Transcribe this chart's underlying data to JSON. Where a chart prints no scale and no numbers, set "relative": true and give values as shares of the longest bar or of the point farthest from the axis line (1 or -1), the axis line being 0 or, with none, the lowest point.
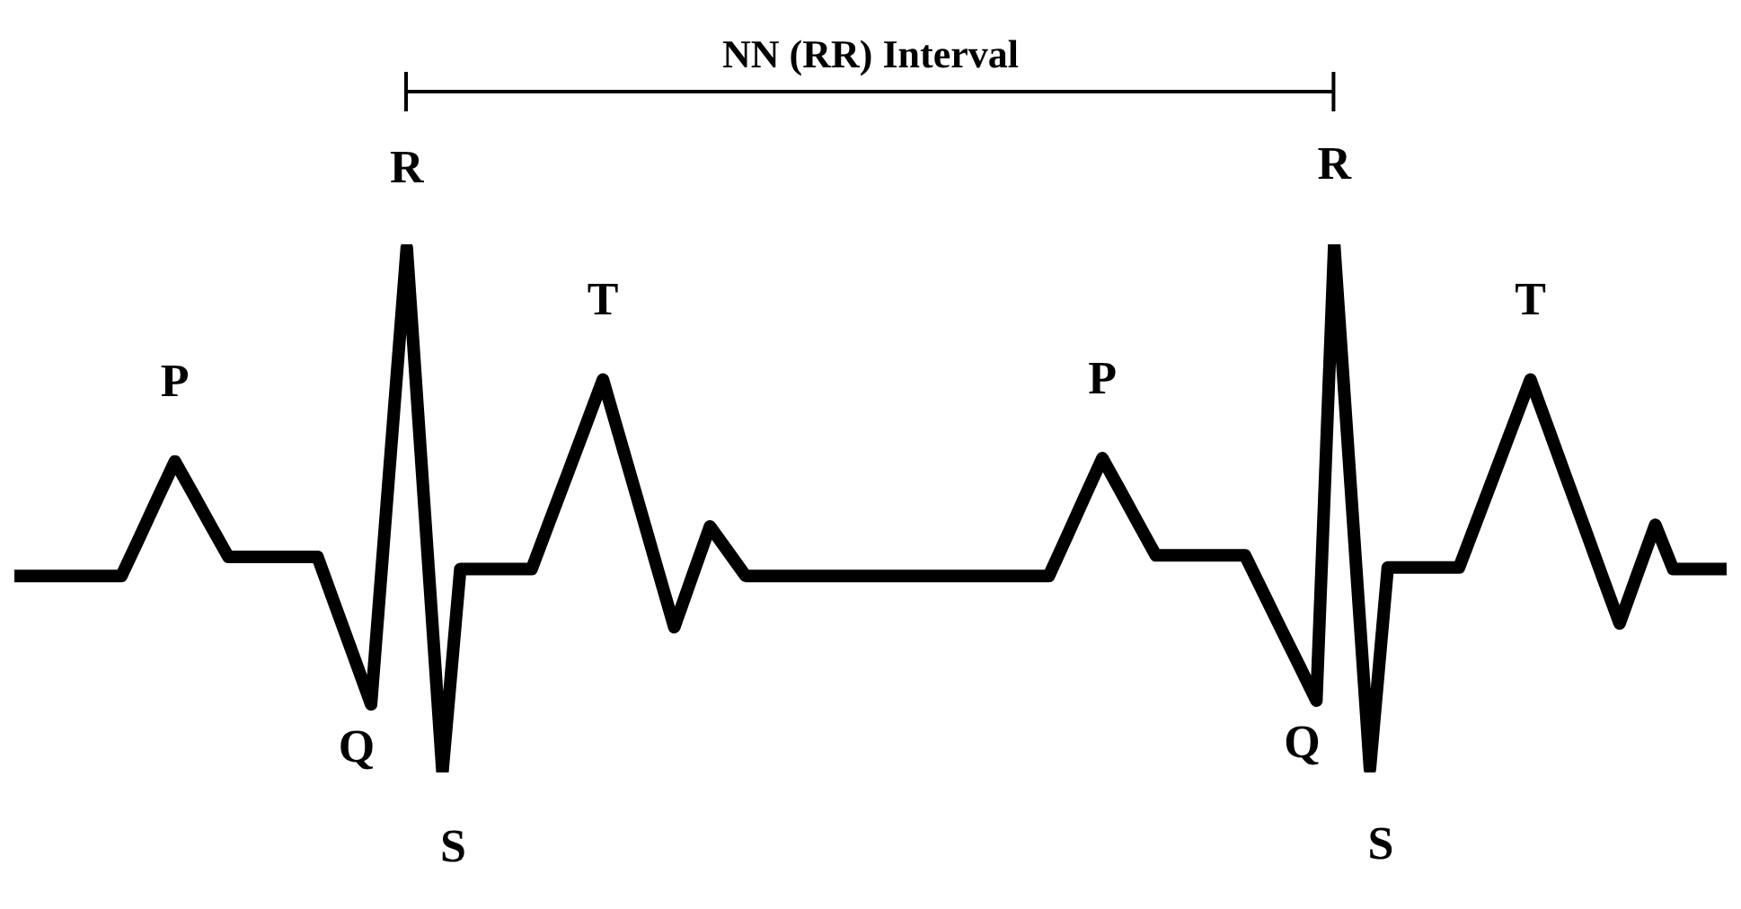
{
  "chart_data": {
    "type": "line",
    "relative": true,
    "grid": false,
    "legend": false,
    "marker": "none",
    "line_style": "solid",
    "categories": [
      null,
      null,
      null,
      null,
      null,
      null,
      null,
      null,
      null,
      null,
      null,
      null,
      null,
      null,
      null,
      null,
      null,
      null,
      null,
      null,
      null,
      null,
      null,
      null,
      null,
      null,
      null,
      null,
      null,
      null,
      null,
      null,
      null,
      null,
      null,
      null,
      null,
      null,
      null,
      null,
      null,
      null,
      null,
      null,
      null,
      null,
      null,
      null,
      null,
      null,
      null,
      null,
      null,
      null,
      null,
      null,
      null,
      null,
      null,
      null,
      null,
      null,
      null,
      null,
      null,
      null,
      null,
      null,
      null,
      null,
      null,
      null,
      null,
      null,
      null,
      null,
      null,
      null,
      null,
      null,
      null,
      null,
      null,
      null,
      null,
      null,
      null,
      null,
      null,
      null,
      null,
      null,
      null,
      null,
      null,
      null,
      null
    ],
    "series": [
      {
        "color": "#000000",
        "values": [
          0.372,
          0.372,
          0.372,
          0.372,
          0.372,
          0.372,
          0.372,
          0.444,
          0.517,
          0.589,
          0.529,
          0.468,
          0.408,
          0.408,
          0.408,
          0.408,
          0.408,
          0.408,
          0.315,
          0.222,
          0.129,
          0.562,
          0.994,
          0.497,
          0,
          0.385,
          0.385,
          0.385,
          0.385,
          0.385,
          0.475,
          0.564,
          0.654,
          0.744,
          0.627,
          0.51,
          0.392,
          0.275,
          0.371,
          0.466,
          0.419,
          0.372,
          0.372,
          0.372,
          0.372,
          0.372,
          0.372,
          0.372,
          0.372,
          0.372,
          0.372,
          0.372,
          0.372,
          0.372,
          0.372,
          0.372,
          0.372,
          0.372,
          0.372,
          0.446,
          0.521,
          0.595,
          0.534,
          0.472,
          0.411,
          0.411,
          0.411,
          0.411,
          0.411,
          0.411,
          0.342,
          0.273,
          0.205,
          0.136,
          1,
          0.503,
          0.006,
          0.388,
          0.388,
          0.388,
          0.388,
          0.388,
          0.477,
          0.566,
          0.655,
          0.744,
          0.652,
          0.559,
          0.467,
          0.374,
          0.282,
          0.376,
          0.469,
          0.385,
          0.385,
          0.385,
          0.385
        ]
      }
    ],
    "annotations": [
      "NN (RR) Interval",
      {
        "text": "P",
        "y": 0.589
      },
      {
        "text": "Q",
        "y": 0.129
      },
      {
        "text": "R",
        "y": 0.994
      },
      {
        "text": "S",
        "y": 0
      },
      {
        "text": "T",
        "y": 0.744
      },
      {
        "text": "P",
        "y": 0.595
      },
      {
        "text": "Q",
        "y": 0.136
      },
      {
        "text": "R",
        "y": 1
      },
      {
        "text": "S",
        "y": 0.006
      },
      {
        "text": "T",
        "y": 0.744
      }
    ]
  }
}
